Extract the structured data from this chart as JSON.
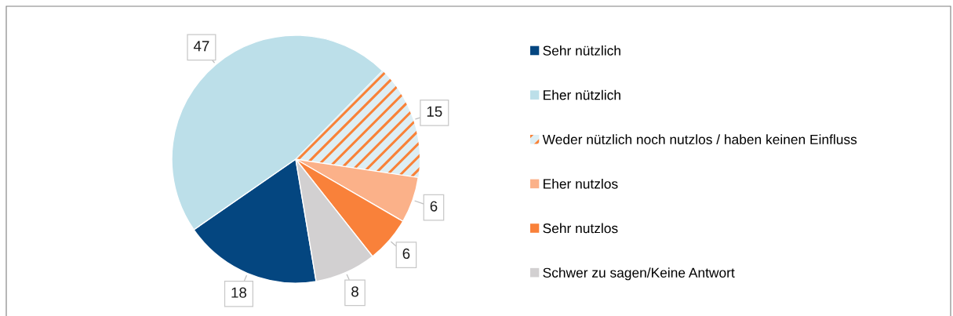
{
  "chart_data": {
    "type": "pie",
    "categories": [
      "Sehr nützlich",
      "Eher nützlich",
      "Weder nützlich noch nutzlos / haben keinen Einfluss",
      "Eher nutzlos",
      "Sehr nutzlos",
      "Schwer zu sagen/Keine Antwort"
    ],
    "values": [
      18,
      47,
      15,
      6,
      6,
      8
    ],
    "colors": [
      "#044680",
      "#bcdfe9",
      "#ddeef4",
      "#fbb189",
      "#f9813a",
      "#d2d0d1"
    ],
    "data_labels": true,
    "legend": "right"
  }
}
